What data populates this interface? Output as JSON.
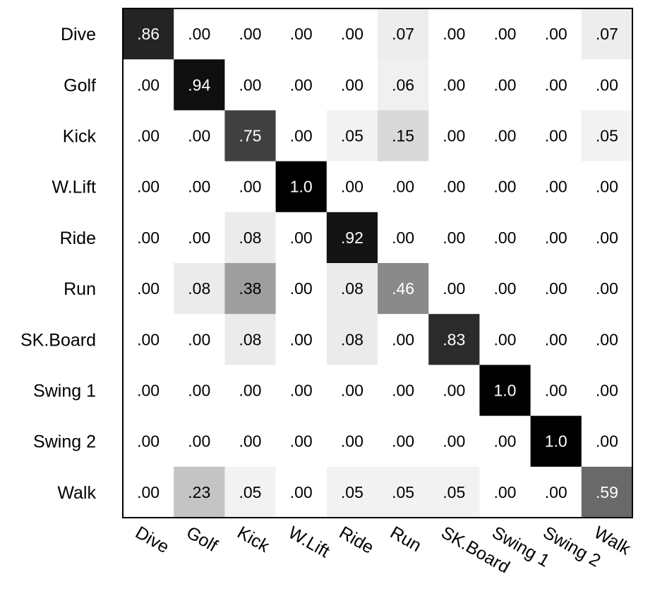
{
  "chart_data": {
    "type": "heatmap",
    "title": "",
    "xlabel": "",
    "ylabel": "",
    "row_labels": [
      "Dive",
      "Golf",
      "Kick",
      "W.Lift",
      "Ride",
      "Run",
      "SK.Board",
      "Swing 1",
      "Swing 2",
      "Walk"
    ],
    "col_labels": [
      "Dive",
      "Golf",
      "Kick",
      "W.Lift",
      "Ride",
      "Run",
      "SK.Board",
      "Swing 1",
      "Swing 2",
      "Walk"
    ],
    "value_labels": [
      [
        ".86",
        ".00",
        ".00",
        ".00",
        ".00",
        ".07",
        ".00",
        ".00",
        ".00",
        ".07"
      ],
      [
        ".00",
        ".94",
        ".00",
        ".00",
        ".00",
        ".06",
        ".00",
        ".00",
        ".00",
        ".00"
      ],
      [
        ".00",
        ".00",
        ".75",
        ".00",
        ".05",
        ".15",
        ".00",
        ".00",
        ".00",
        ".05"
      ],
      [
        ".00",
        ".00",
        ".00",
        "1.0",
        ".00",
        ".00",
        ".00",
        ".00",
        ".00",
        ".00"
      ],
      [
        ".00",
        ".00",
        ".08",
        ".00",
        ".92",
        ".00",
        ".00",
        ".00",
        ".00",
        ".00"
      ],
      [
        ".00",
        ".08",
        ".38",
        ".00",
        ".08",
        ".46",
        ".00",
        ".00",
        ".00",
        ".00"
      ],
      [
        ".00",
        ".00",
        ".08",
        ".00",
        ".08",
        ".00",
        ".83",
        ".00",
        ".00",
        ".00"
      ],
      [
        ".00",
        ".00",
        ".00",
        ".00",
        ".00",
        ".00",
        ".00",
        "1.0",
        ".00",
        ".00"
      ],
      [
        ".00",
        ".00",
        ".00",
        ".00",
        ".00",
        ".00",
        ".00",
        ".00",
        "1.0",
        ".00"
      ],
      [
        ".00",
        ".23",
        ".05",
        ".00",
        ".05",
        ".05",
        ".05",
        ".00",
        ".00",
        ".59"
      ]
    ],
    "values": [
      [
        0.86,
        0.0,
        0.0,
        0.0,
        0.0,
        0.07,
        0.0,
        0.0,
        0.0,
        0.07
      ],
      [
        0.0,
        0.94,
        0.0,
        0.0,
        0.0,
        0.06,
        0.0,
        0.0,
        0.0,
        0.0
      ],
      [
        0.0,
        0.0,
        0.75,
        0.0,
        0.05,
        0.15,
        0.0,
        0.0,
        0.0,
        0.05
      ],
      [
        0.0,
        0.0,
        0.0,
        1.0,
        0.0,
        0.0,
        0.0,
        0.0,
        0.0,
        0.0
      ],
      [
        0.0,
        0.0,
        0.08,
        0.0,
        0.92,
        0.0,
        0.0,
        0.0,
        0.0,
        0.0
      ],
      [
        0.0,
        0.08,
        0.38,
        0.0,
        0.08,
        0.46,
        0.0,
        0.0,
        0.0,
        0.0
      ],
      [
        0.0,
        0.0,
        0.08,
        0.0,
        0.08,
        0.0,
        0.83,
        0.0,
        0.0,
        0.0
      ],
      [
        0.0,
        0.0,
        0.0,
        0.0,
        0.0,
        0.0,
        0.0,
        1.0,
        0.0,
        0.0
      ],
      [
        0.0,
        0.0,
        0.0,
        0.0,
        0.0,
        0.0,
        0.0,
        0.0,
        1.0,
        0.0
      ],
      [
        0.0,
        0.23,
        0.05,
        0.0,
        0.05,
        0.05,
        0.05,
        0.0,
        0.0,
        0.59
      ]
    ],
    "color_scale": "grayscale, white (0) to black (1)",
    "grid": false,
    "legend": "none"
  }
}
